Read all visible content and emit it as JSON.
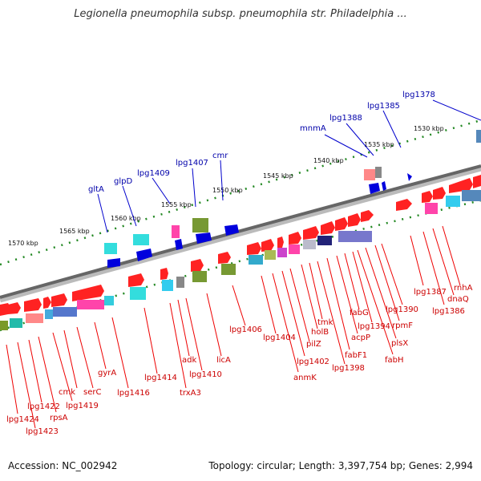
{
  "title": "Legionella pneumophila subsp. pneumophila str. Philadelphia ...",
  "footer": {
    "accession": "Accession: NC_002942",
    "summary": "Topology: circular; Length: 3,397,754 bp; Genes: 2,994"
  },
  "scale_labels": [
    "1570 kbp",
    "1565 kbp",
    "1560 kbp",
    "1555 kbp",
    "1550 kbp",
    "1545 kbp",
    "1540 kbp",
    "1535 kbp",
    "1530 kbp"
  ],
  "genes_upper": [
    "gltA",
    "glpD",
    "lpg1409",
    "lpg1407",
    "cmr",
    "mnmA",
    "lpg1388",
    "lpg1385",
    "lpg1378"
  ],
  "genes_lower": [
    "lpg1424",
    "lpg1423",
    "lpg1422",
    "rpsA",
    "lpg1419",
    "cmk",
    "serC",
    "gyrA",
    "lpg1416",
    "lpg1414",
    "trxA3",
    "adk",
    "lpg1410",
    "licA",
    "lpg1406",
    "lpg1404",
    "anmK",
    "lpg1402",
    "pilZ",
    "holB",
    "tmk",
    "lpg1398",
    "fabF1",
    "acpP",
    "fabG",
    "lpg1394",
    "fabH",
    "plsX",
    "rpmF",
    "lpg1390",
    "lpg1387",
    "lpg1386",
    "dnaQ",
    "rnhA"
  ]
}
